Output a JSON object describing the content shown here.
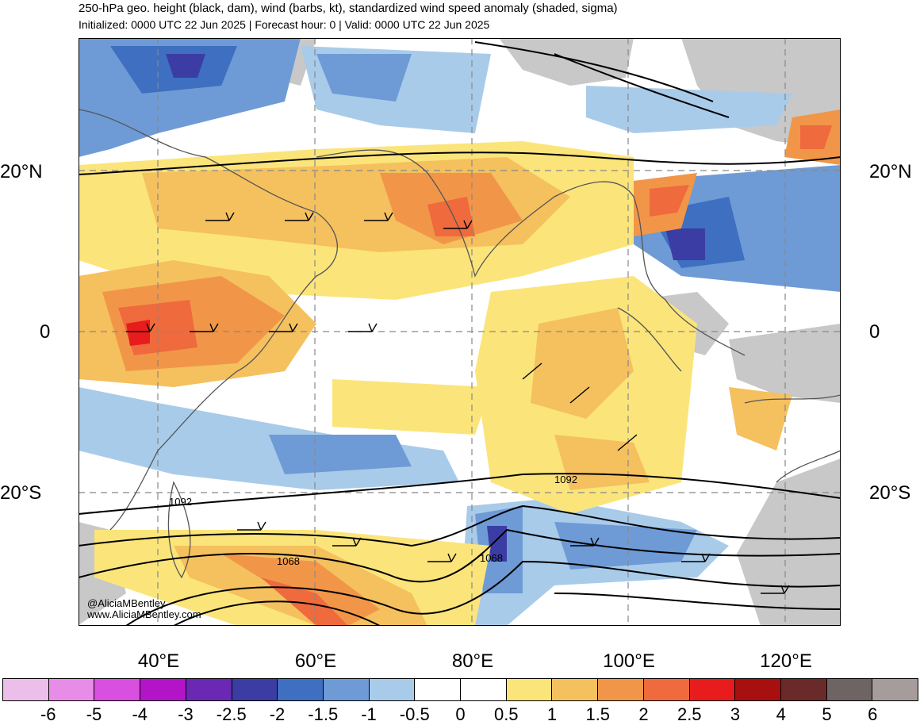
{
  "header": {
    "title": "250-hPa geo. height (black, dam), wind (barbs, kt), standardized wind speed anomaly (shaded, sigma)",
    "subtitle": "Initialized: 0000 UTC 22 Jun 2025 | Forecast hour: 0 | Valid: 0000 UTC 22 Jun 2025"
  },
  "axes": {
    "lat_left": [
      "20°N",
      "0",
      "20°S"
    ],
    "lat_right": [
      "20°N",
      "0",
      "20°S"
    ],
    "lon": [
      "40°E",
      "60°E",
      "80°E",
      "100°E",
      "120°E"
    ]
  },
  "contour_labels": [
    "1092",
    "1092",
    "1068",
    "1068"
  ],
  "watermark": {
    "handle": "@AliciaMBentley",
    "url": "www.AliciaMBentley.com"
  },
  "colorbar": {
    "labels": [
      "-6",
      "-5",
      "-4",
      "-3",
      "-2.5",
      "-2",
      "-1.5",
      "-1",
      "-0.5",
      "0",
      "0.5",
      "1",
      "1.5",
      "2",
      "2.5",
      "3",
      "4",
      "5",
      "6"
    ],
    "colors": [
      "#ebbfe9",
      "#e88de7",
      "#d94fe0",
      "#b414c8",
      "#6a28b4",
      "#3c3ca5",
      "#3e6fc0",
      "#6e9bd6",
      "#a9cbea",
      "#ffffff",
      "#ffffff",
      "#fbe57a",
      "#f5c05e",
      "#f19648",
      "#ef6a3c",
      "#e81c1c",
      "#a81010",
      "#6a2a2a",
      "#6e6464",
      "#a69c9c"
    ]
  }
}
